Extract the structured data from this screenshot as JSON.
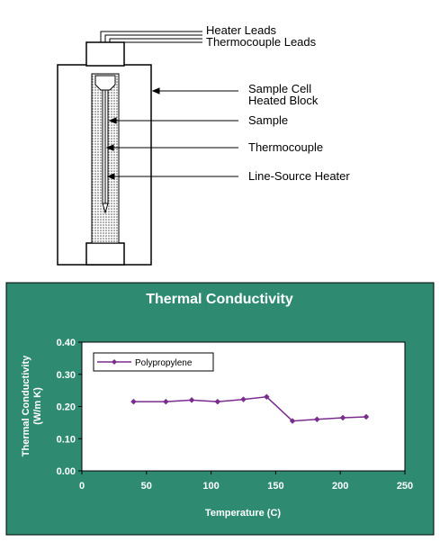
{
  "diagram": {
    "labels": {
      "heater_leads": "Heater Leads",
      "thermocouple_leads": "Thermocouple Leads",
      "sample_cell_line1": "Sample Cell",
      "sample_cell_line2": "Heated Block",
      "sample": "Sample",
      "thermocouple": "Thermocouple",
      "line_source_heater": "Line-Source Heater"
    }
  },
  "chart_data": {
    "type": "line",
    "title": "Thermal Conductivity",
    "xlabel": "Temperature (C)",
    "ylabel_line1": "Thermal Conductivity",
    "ylabel_line2": "(W/m K)",
    "xlim": [
      0,
      250
    ],
    "ylim": [
      0,
      0.4
    ],
    "x_ticks": [
      "0",
      "50",
      "100",
      "150",
      "200",
      "250"
    ],
    "y_ticks": [
      "0.00",
      "0.10",
      "0.20",
      "0.30",
      "0.40"
    ],
    "legend_position": "top-left",
    "background": "#2E8B72",
    "series": [
      {
        "name": "Polypropylene",
        "color": "#7B2D8E",
        "x": [
          40,
          65,
          85,
          105,
          125,
          143,
          163,
          182,
          202,
          220
        ],
        "y": [
          0.215,
          0.215,
          0.22,
          0.215,
          0.222,
          0.23,
          0.155,
          0.16,
          0.165,
          0.168
        ]
      }
    ]
  }
}
